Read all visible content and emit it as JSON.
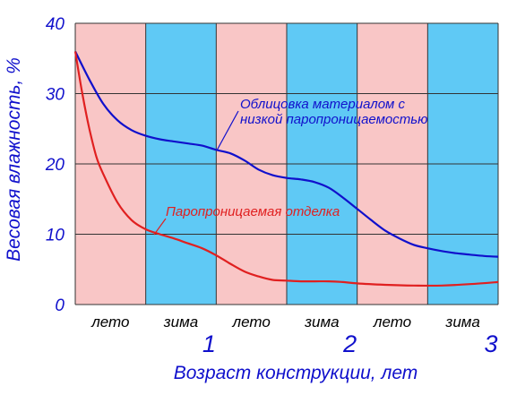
{
  "chart_data": {
    "type": "line",
    "xlabel": "Возраст конструкции, лет",
    "ylabel": "Весовая влажность, %",
    "xlim": [
      0,
      3
    ],
    "ylim": [
      0,
      40
    ],
    "y_ticks": [
      "0",
      "10",
      "20",
      "30",
      "40"
    ],
    "x_ticks": [
      {
        "x": 1,
        "label": "1"
      },
      {
        "x": 2,
        "label": "2"
      },
      {
        "x": 3,
        "label": "3"
      }
    ],
    "season_bands": [
      {
        "start": 0.0,
        "end": 0.5,
        "label": "лето",
        "color": "#f9c6c6"
      },
      {
        "start": 0.5,
        "end": 1.0,
        "label": "зима",
        "color": "#5fc9f5"
      },
      {
        "start": 1.0,
        "end": 1.5,
        "label": "лето",
        "color": "#f9c6c6"
      },
      {
        "start": 1.5,
        "end": 2.0,
        "label": "зима",
        "color": "#5fc9f5"
      },
      {
        "start": 2.0,
        "end": 2.5,
        "label": "лето",
        "color": "#f9c6c6"
      },
      {
        "start": 2.5,
        "end": 3.0,
        "label": "зима",
        "color": "#5fc9f5"
      }
    ],
    "grid": true,
    "series": [
      {
        "name": "Облицовка материалом с низкой паропроницаемостью",
        "color": "#1010cc",
        "x": [
          0,
          0.1,
          0.2,
          0.3,
          0.4,
          0.5,
          0.6,
          0.7,
          0.8,
          0.9,
          1.0,
          1.1,
          1.2,
          1.3,
          1.4,
          1.5,
          1.6,
          1.7,
          1.8,
          1.9,
          2.0,
          2.1,
          2.2,
          2.3,
          2.4,
          2.5,
          2.6,
          2.7,
          2.8,
          2.9,
          3.0
        ],
        "y": [
          36,
          32,
          28.5,
          26.2,
          24.8,
          24,
          23.5,
          23.2,
          22.9,
          22.6,
          22,
          21.5,
          20.5,
          19.2,
          18.4,
          18,
          17.8,
          17.4,
          16.6,
          15.2,
          13.6,
          12,
          10.5,
          9.4,
          8.5,
          8,
          7.6,
          7.3,
          7.1,
          6.9,
          6.8
        ]
      },
      {
        "name": "Паропроницаемая отделка",
        "color": "#e02020",
        "x": [
          0,
          0.05,
          0.1,
          0.15,
          0.2,
          0.3,
          0.4,
          0.5,
          0.6,
          0.7,
          0.8,
          0.9,
          1.0,
          1.1,
          1.2,
          1.3,
          1.4,
          1.5,
          1.6,
          1.7,
          1.8,
          1.9,
          2.0,
          2.2,
          2.4,
          2.6,
          2.8,
          3.0
        ],
        "y": [
          36,
          30,
          25,
          21,
          18.5,
          14.5,
          12,
          10.7,
          10,
          9.4,
          8.7,
          8,
          7,
          5.8,
          4.7,
          4,
          3.5,
          3.4,
          3.3,
          3.3,
          3.3,
          3.2,
          3.0,
          2.8,
          2.7,
          2.7,
          2.9,
          3.2
        ]
      }
    ],
    "annotations": [
      {
        "lines": [
          "Облицовка материалом с",
          "низкой паропроницаемостью"
        ],
        "color": "#1010cc"
      },
      {
        "lines": [
          "Паропроницаемая отделка"
        ],
        "color": "#e02020"
      }
    ]
  }
}
